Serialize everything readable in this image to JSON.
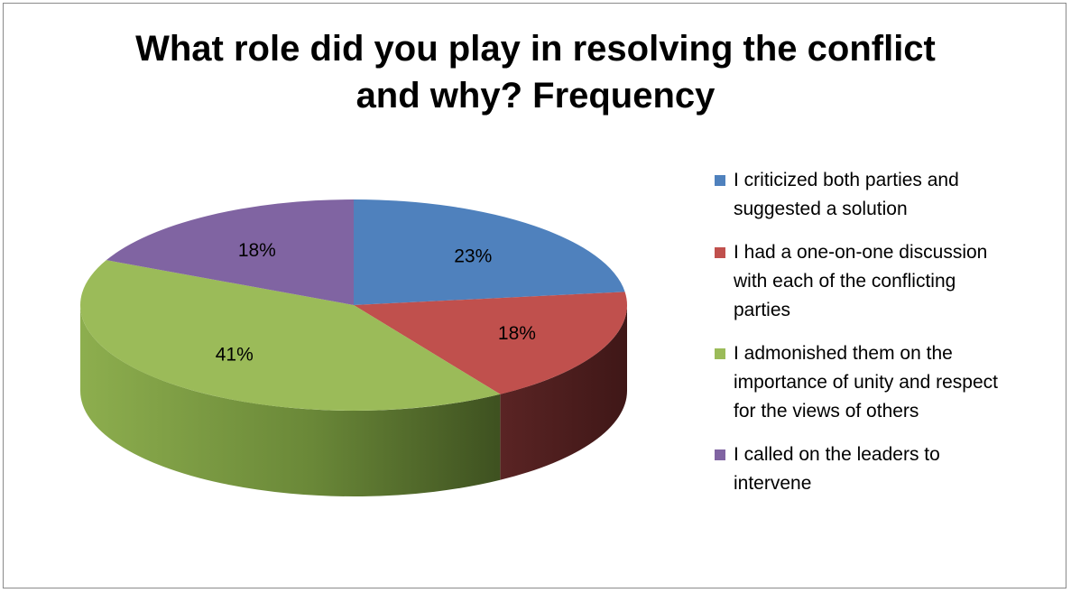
{
  "chart_data": {
    "type": "pie",
    "title": "What role did you play in resolving the conflict and why? Frequency",
    "title_lines": [
      "What role did you play in resolving the conflict",
      "and why? Frequency"
    ],
    "three_d": true,
    "legend_position": "right",
    "slices": [
      {
        "label": "I criticized both parties and suggested a solution",
        "label_lines": [
          "I criticized both parties and",
          "suggested a solution"
        ],
        "value": 23,
        "display": "23%",
        "color": "#4F81BD",
        "side_color": "#3A5F8C"
      },
      {
        "label": "I had a one-on-one discussion with each of the conflicting parties",
        "label_lines": [
          "I had a one-on-one discussion",
          "with each of the conflicting",
          "parties"
        ],
        "value": 18,
        "display": "18%",
        "color": "#C0504D",
        "side_color": "#4D1F1F"
      },
      {
        "label": "I admonished them on the importance of unity and respect for the views of others",
        "label_lines": [
          "I admonished them on the",
          "importance of unity and respect",
          "for the views of others"
        ],
        "value": 41,
        "display": "41%",
        "color": "#9BBB59",
        "side_color": "#6E8A3C"
      },
      {
        "label": "I called on the leaders to intervene",
        "label_lines": [
          "I called on the leaders to",
          "intervene"
        ],
        "value": 18,
        "display": "18%",
        "color": "#8064A2",
        "side_color": "#5A4673"
      }
    ]
  }
}
